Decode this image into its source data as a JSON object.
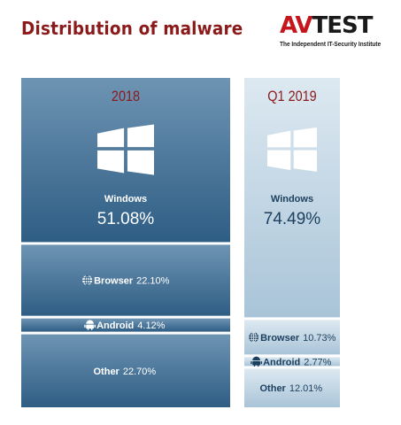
{
  "title": "Distribution of malware",
  "logo": {
    "mark_prefix": "AV",
    "mark_suffix": "TEST",
    "tagline": "The Independent IT-Security Institute",
    "colors": {
      "red": "#c4161c",
      "dark": "#1a1a1a"
    }
  },
  "icons": {
    "windows": "windows-logo-icon",
    "browser": "globe-icon",
    "android": "android-icon"
  },
  "colors": {
    "title": "#8b1a1a",
    "col2018": [
      "#6e94b3",
      "#2e5d84",
      "#244f74"
    ],
    "colQ12019": [
      "#dde9f1",
      "#a9c4d8"
    ],
    "text_light": "#ffffff",
    "text_dark": "#1d3f5e"
  },
  "chart_data": {
    "type": "table",
    "title": "Distribution of malware",
    "columns": [
      {
        "label": "2018",
        "segments": [
          {
            "name": "Windows",
            "value": 51.08,
            "label": "51.08%"
          },
          {
            "name": "Browser",
            "value": 22.1,
            "label": "22.10%"
          },
          {
            "name": "Android",
            "value": 4.12,
            "label": "4.12%"
          },
          {
            "name": "Other",
            "value": 22.7,
            "label": "22.70%"
          }
        ]
      },
      {
        "label": "Q1 2019",
        "segments": [
          {
            "name": "Windows",
            "value": 74.49,
            "label": "74.49%"
          },
          {
            "name": "Browser",
            "value": 10.73,
            "label": "10.73%"
          },
          {
            "name": "Android",
            "value": 2.77,
            "label": "2.77%"
          },
          {
            "name": "Other",
            "value": 12.01,
            "label": "12.01%"
          }
        ]
      }
    ]
  }
}
